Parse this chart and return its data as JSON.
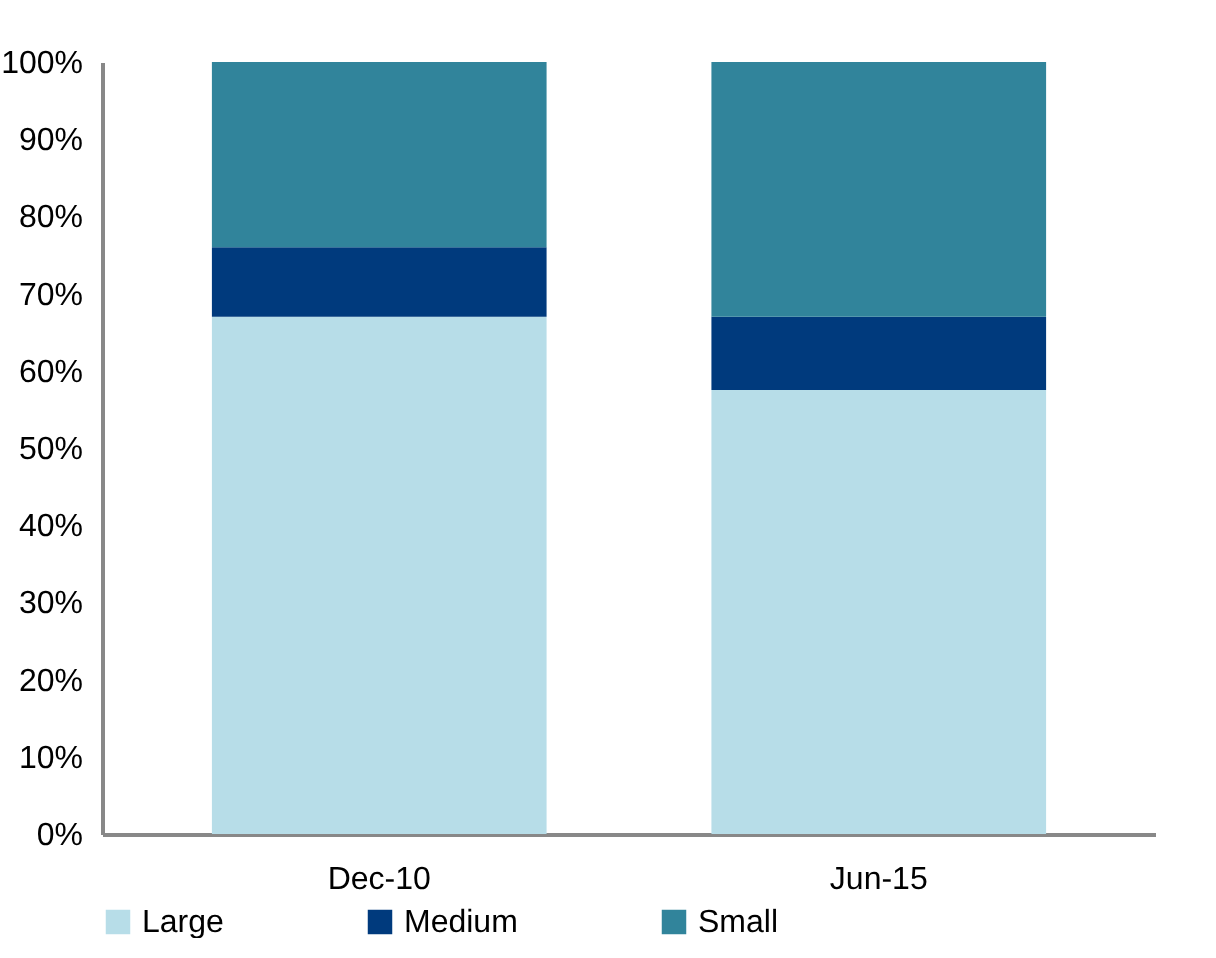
{
  "chart_data": {
    "type": "bar",
    "stacked": true,
    "categories": [
      "Dec-10",
      "Jun-15"
    ],
    "series": [
      {
        "name": "Large",
        "color": "#b7dde8",
        "values": [
          67,
          57.5
        ]
      },
      {
        "name": "Medium",
        "color": "#003a7d",
        "values": [
          9,
          9.5
        ]
      },
      {
        "name": "Small",
        "color": "#31849b",
        "values": [
          24,
          33
        ]
      }
    ],
    "ylim": [
      0,
      100
    ],
    "yticks": [
      {
        "value": 0,
        "label": "0%"
      },
      {
        "value": 10,
        "label": "10%"
      },
      {
        "value": 20,
        "label": "20%"
      },
      {
        "value": 30,
        "label": "30%"
      },
      {
        "value": 40,
        "label": "40%"
      },
      {
        "value": 50,
        "label": "50%"
      },
      {
        "value": 60,
        "label": "60%"
      },
      {
        "value": 70,
        "label": "70%"
      },
      {
        "value": 80,
        "label": "80%"
      },
      {
        "value": 90,
        "label": "90%"
      },
      {
        "value": 100,
        "label": "100%"
      }
    ],
    "grid": false,
    "legend": "bottom"
  }
}
